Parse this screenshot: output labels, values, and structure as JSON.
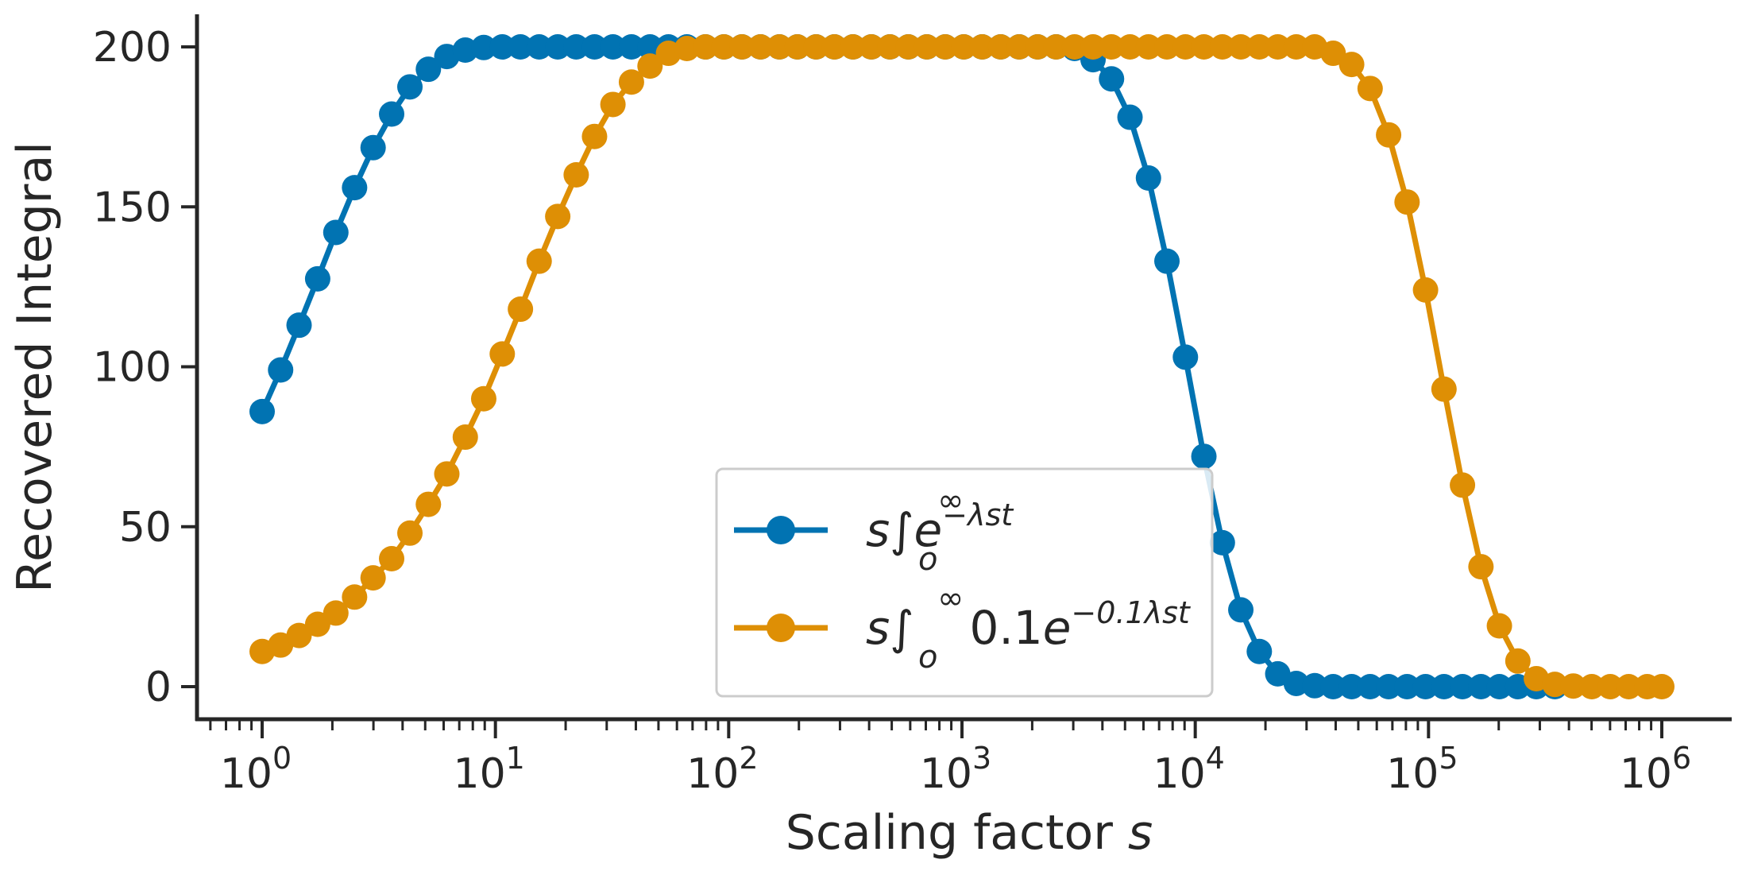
{
  "chart_data": {
    "type": "line",
    "xscale": "log",
    "xlim": [
      0.55,
      1900000
    ],
    "ylim": [
      -10,
      210
    ],
    "xlabel": "Scaling factor s",
    "ylabel": "Recovered Integral",
    "title": "",
    "grid": false,
    "legend_position": "lower-center",
    "x_tick_labels": [
      {
        "base": "10",
        "exp": "0"
      },
      {
        "base": "10",
        "exp": "1"
      },
      {
        "base": "10",
        "exp": "2"
      },
      {
        "base": "10",
        "exp": "3"
      },
      {
        "base": "10",
        "exp": "4"
      },
      {
        "base": "10",
        "exp": "5"
      },
      {
        "base": "10",
        "exp": "6"
      }
    ],
    "y_ticks": [
      0,
      50,
      100,
      150,
      200
    ],
    "series": [
      {
        "name": "s∫o∞ e^(−λst)",
        "legend": {
          "prefix": "s",
          "lower": "o",
          "upper": "∞",
          "base": "e",
          "coef": "",
          "exponent": "−λst"
        },
        "color": "#0173b2",
        "x": [
          1.0,
          1.2,
          1.44,
          1.73,
          2.07,
          2.49,
          2.99,
          3.59,
          4.3,
          5.16,
          6.19,
          7.43,
          8.91,
          10.7,
          12.8,
          15.4,
          18.5,
          22.2,
          26.6,
          31.9,
          38.3,
          46,
          55.2,
          66.2,
          79.5,
          95.4,
          114,
          137,
          165,
          197,
          237,
          284,
          341,
          409,
          491,
          589,
          707,
          848,
          1018,
          1221,
          1466,
          1759,
          2111,
          2533,
          3039,
          3647,
          4376,
          5252,
          6302,
          7562,
          9075,
          10890,
          13070,
          15680,
          18820,
          22580,
          27100,
          32520,
          39020,
          46830,
          56190,
          67430,
          80910,
          97100,
          116500,
          139800,
          167800,
          201300,
          241600,
          289900,
          347900
        ],
        "y": [
          86,
          99,
          113,
          127.5,
          142,
          156,
          168.5,
          179,
          187.5,
          193,
          197,
          199,
          199.8,
          200,
          200,
          200,
          200,
          200,
          200,
          200,
          200,
          200,
          200,
          200,
          200,
          200,
          200,
          200,
          200,
          200,
          200,
          200,
          200,
          200,
          200,
          200,
          200,
          200,
          200,
          200,
          200,
          200,
          200,
          200,
          199.5,
          196,
          190,
          178,
          159,
          133,
          103,
          72,
          45,
          24,
          11,
          4,
          1,
          0.3,
          0,
          0,
          0,
          0,
          0,
          0,
          0,
          0,
          0,
          0,
          0,
          0,
          0
        ]
      },
      {
        "name": "s∫o∞ 0.1e^(−0.1λst)",
        "legend": {
          "prefix": "s",
          "lower": "o",
          "upper": "∞",
          "base": "e",
          "coef": "0.1",
          "exponent": "−0.1λst"
        },
        "color": "#de8f05",
        "x": [
          1.0,
          1.2,
          1.44,
          1.73,
          2.07,
          2.49,
          2.99,
          3.59,
          4.3,
          5.16,
          6.19,
          7.43,
          8.91,
          10.7,
          12.8,
          15.4,
          18.5,
          22.2,
          26.6,
          31.9,
          38.3,
          46,
          55.2,
          66.2,
          79.5,
          95.4,
          114,
          137,
          165,
          197,
          237,
          284,
          341,
          409,
          491,
          589,
          707,
          848,
          1018,
          1221,
          1466,
          1759,
          2111,
          2533,
          3039,
          3647,
          4376,
          5252,
          6302,
          7562,
          9075,
          10890,
          13070,
          15680,
          18820,
          22580,
          27100,
          32520,
          39020,
          46830,
          56190,
          67430,
          80910,
          97100,
          116500,
          139800,
          167800,
          201300,
          241600,
          289900,
          347900,
          417500,
          501000,
          601200,
          721400,
          865700,
          1000000
        ],
        "y": [
          11,
          13,
          16,
          19.5,
          23,
          28,
          34,
          40,
          48,
          57,
          66.5,
          78,
          90,
          104,
          118,
          133,
          147,
          160,
          172,
          182,
          189,
          194,
          198,
          199.5,
          200,
          200,
          200,
          200,
          200,
          200,
          200,
          200,
          200,
          200,
          200,
          200,
          200,
          200,
          200,
          200,
          200,
          200,
          200,
          200,
          200,
          200,
          200,
          200,
          200,
          200,
          200,
          200,
          200,
          200,
          200,
          200,
          200,
          200,
          198,
          194.5,
          187,
          172.5,
          151.5,
          124,
          93,
          63,
          37.5,
          19,
          8,
          2.5,
          0.7,
          0.2,
          0,
          0,
          0,
          0,
          0
        ]
      }
    ]
  }
}
